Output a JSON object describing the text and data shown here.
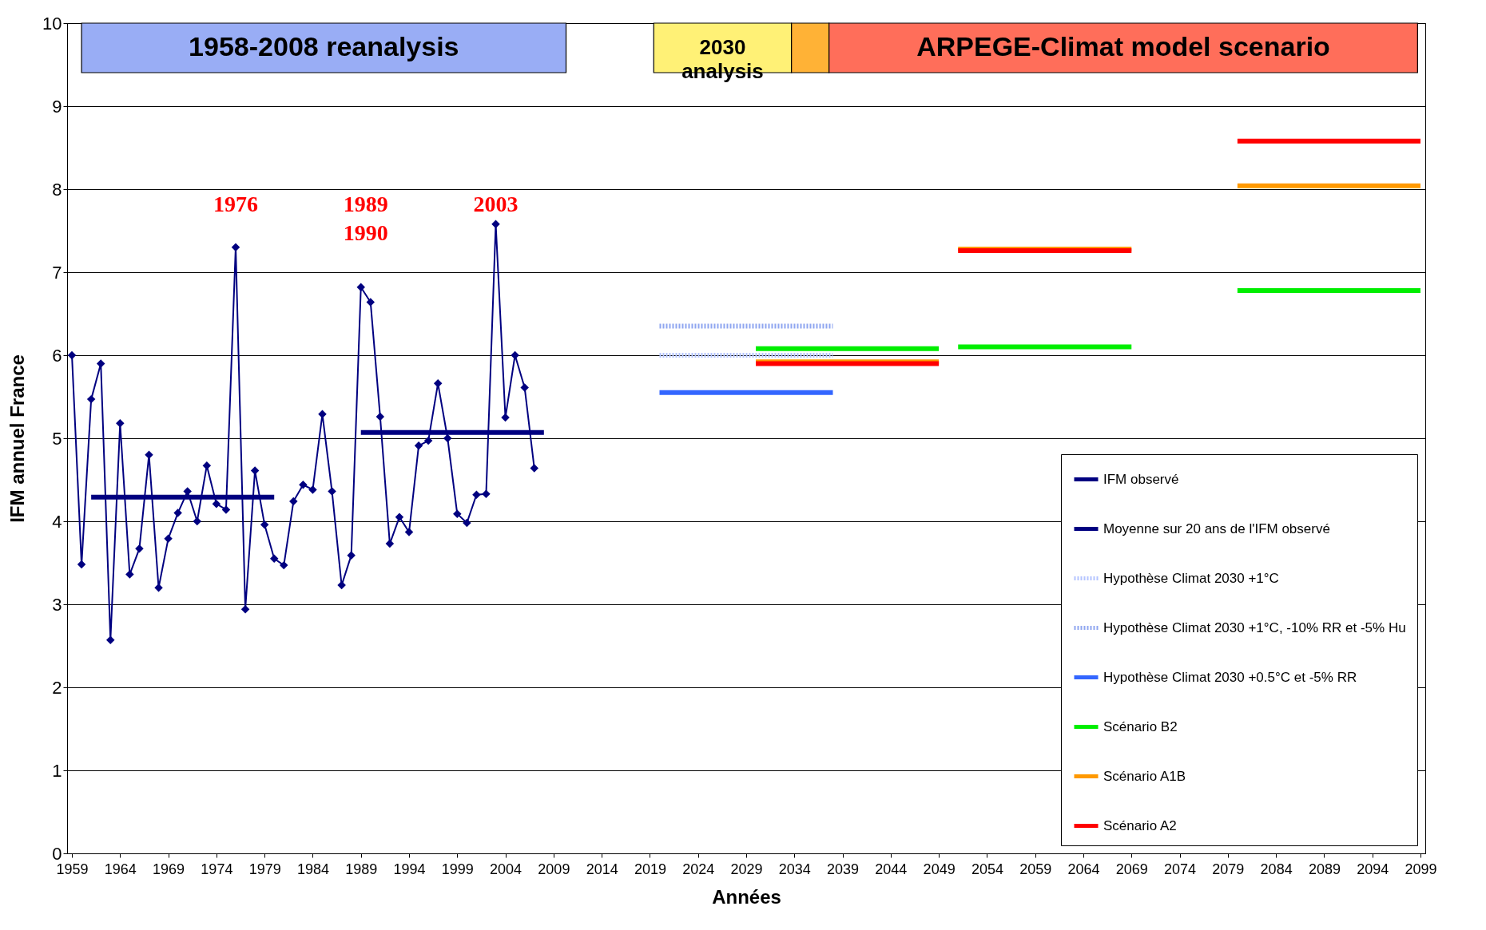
{
  "chart_data": {
    "type": "line",
    "xlabel": "Années",
    "ylabel": "IFM annuel France",
    "xlim": [
      1958.5,
      2099.5
    ],
    "xticks": [
      1959,
      1964,
      1969,
      1974,
      1979,
      1984,
      1989,
      1994,
      1999,
      2004,
      2009,
      2014,
      2019,
      2024,
      2029,
      2034,
      2039,
      2044,
      2049,
      2054,
      2059,
      2064,
      2069,
      2074,
      2079,
      2084,
      2089,
      2094,
      2099
    ],
    "ylim": [
      0,
      10
    ],
    "yticks": [
      0,
      1,
      2,
      3,
      4,
      5,
      6,
      7,
      8,
      9,
      10
    ],
    "grid": "y",
    "legend": "bottom right",
    "series": [
      {
        "name": "IFM observé",
        "color": "#000080",
        "marker": "diamond",
        "x": [
          1959,
          1960,
          1961,
          1962,
          1963,
          1964,
          1965,
          1966,
          1967,
          1968,
          1969,
          1970,
          1971,
          1972,
          1973,
          1974,
          1975,
          1976,
          1977,
          1978,
          1979,
          1980,
          1981,
          1982,
          1983,
          1984,
          1985,
          1986,
          1987,
          1988,
          1989,
          1990,
          1991,
          1992,
          1993,
          1994,
          1995,
          1996,
          1997,
          1998,
          1999,
          2000,
          2001,
          2002,
          2003,
          2004,
          2005,
          2006,
          2007
        ],
        "values": [
          6.0,
          3.48,
          5.47,
          5.9,
          2.57,
          5.18,
          3.36,
          3.67,
          4.8,
          3.2,
          3.79,
          4.1,
          4.36,
          4.0,
          4.67,
          4.21,
          4.14,
          7.3,
          2.94,
          4.61,
          3.96,
          3.55,
          3.47,
          4.24,
          4.44,
          4.38,
          5.29,
          4.36,
          3.23,
          3.59,
          6.82,
          6.64,
          5.26,
          3.73,
          4.05,
          3.87,
          4.91,
          4.97,
          5.66,
          5.0,
          4.09,
          3.98,
          4.32,
          4.33,
          7.58,
          5.25,
          6.0,
          5.61,
          4.64
        ]
      },
      {
        "name": "Moyenne sur 20 ans de l'IFM observé",
        "color": "#000080",
        "x": [
          1961,
          1980,
          1985,
          1989,
          2008
        ],
        "values": [
          4.29,
          4.29,
          null,
          5.07,
          5.07
        ]
      },
      {
        "name": "Hypothèse Climat 2030 +1°C",
        "color": "#b4c4ff",
        "line_style": "dotted",
        "x": [
          2020,
          2038
        ],
        "values": [
          6.0,
          6.0
        ]
      },
      {
        "name": "Hypothèse Climat 2030 +1°C, -10% RR et -5% Hu",
        "color": "#8fa6f0",
        "line_style": "dotted",
        "x": [
          2020,
          2038
        ],
        "values": [
          6.35,
          6.35
        ]
      },
      {
        "name": "Hypothèse Climat 2030 +0.5°C et -5% RR",
        "color": "#3366ff",
        "x": [
          2020,
          2038
        ],
        "values": [
          5.55,
          5.55
        ]
      },
      {
        "name": "Scénario B2",
        "color": "#00ee00",
        "x": [
          2030,
          2049,
          2050,
          2051,
          2069,
          2075,
          2080,
          2099
        ],
        "values": [
          6.08,
          6.08,
          null,
          6.1,
          6.1,
          null,
          6.78,
          6.78
        ]
      },
      {
        "name": "Scénario A1B",
        "color": "#ff9900",
        "x": [
          2030,
          2049,
          2050,
          2051,
          2069,
          2075,
          2080,
          2099
        ],
        "values": [
          5.92,
          5.92,
          null,
          7.28,
          7.28,
          null,
          8.04,
          8.04
        ]
      },
      {
        "name": "Scénario A2",
        "color": "#ff0000",
        "x": [
          2030,
          2049,
          2050,
          2051,
          2069,
          2075,
          2080,
          2099
        ],
        "values": [
          5.9,
          5.9,
          null,
          7.26,
          7.26,
          null,
          8.58,
          8.58
        ]
      }
    ],
    "bands": [
      {
        "axis": "x",
        "from": 1960,
        "to": 2010.3,
        "label": "1958-2008 reanalysis",
        "color": "#99adf5"
      },
      {
        "axis": "x",
        "from": 2019.4,
        "to": 2033.7,
        "label": "2030 analysis",
        "color": "#fff176"
      },
      {
        "axis": "x",
        "from": 2033.7,
        "to": 2037.6,
        "label": null,
        "color": "#ffb236"
      },
      {
        "axis": "x",
        "from": 2037.6,
        "to": 2098.7,
        "label": "ARPEGE-Climat model scenario",
        "color": "#ff6e5a"
      }
    ],
    "annotations": [
      {
        "text": "1976",
        "x": 1976,
        "y": 7.3
      },
      {
        "text": "1989\n1990",
        "x": 1989.5,
        "y": 6.82
      },
      {
        "text": "2003",
        "x": 2003,
        "y": 7.58
      }
    ]
  }
}
